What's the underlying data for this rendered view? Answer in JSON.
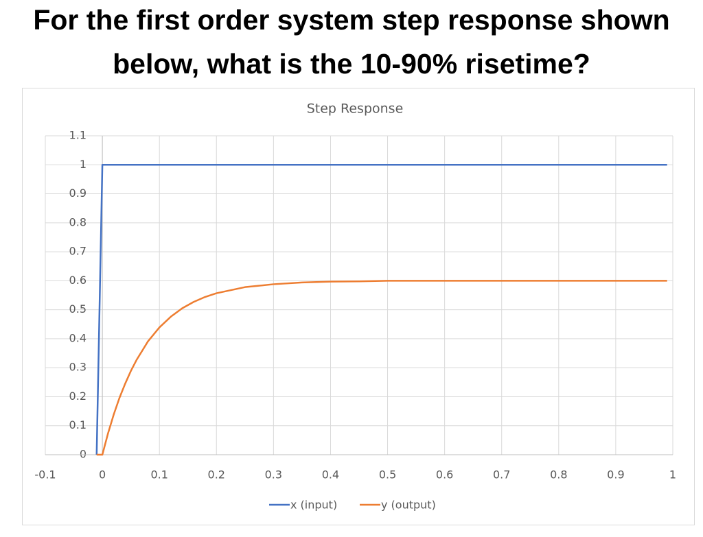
{
  "heading": [
    "For the first order system step response shown",
    "below, what is the 10-90% risetime?"
  ],
  "chart_data": {
    "type": "line",
    "title": "Step Response",
    "x": [
      -0.01,
      0,
      0.01,
      0.02,
      0.03,
      0.04,
      0.05,
      0.06,
      0.08,
      0.1,
      0.12,
      0.14,
      0.16,
      0.18,
      0.2,
      0.25,
      0.3,
      0.35,
      0.4,
      0.45,
      0.5,
      0.6,
      0.7,
      0.8,
      0.9,
      0.99
    ],
    "series": [
      {
        "name": "x (input)",
        "color": "#4472c4",
        "values": [
          0,
          1,
          1,
          1,
          1,
          1,
          1,
          1,
          1,
          1,
          1,
          1,
          1,
          1,
          1,
          1,
          1,
          1,
          1,
          1,
          1,
          1,
          1,
          1,
          1,
          1
        ]
      },
      {
        "name": "y (output)",
        "color": "#ed7d31",
        "values": [
          0,
          0,
          0.074,
          0.139,
          0.196,
          0.245,
          0.289,
          0.327,
          0.391,
          0.439,
          0.476,
          0.505,
          0.527,
          0.544,
          0.557,
          0.578,
          0.588,
          0.594,
          0.597,
          0.598,
          0.6,
          0.6,
          0.6,
          0.6,
          0.6,
          0.6
        ]
      }
    ],
    "xlim": [
      -0.1,
      1
    ],
    "xticks": [
      -0.1,
      0,
      0.1,
      0.2,
      0.3,
      0.4,
      0.5,
      0.6,
      0.7,
      0.8,
      0.9,
      1
    ],
    "ylim": [
      0,
      1.1
    ],
    "yticks": [
      0,
      0.1,
      0.2,
      0.3,
      0.4,
      0.5,
      0.6,
      0.7,
      0.8,
      0.9,
      1,
      1.1
    ],
    "grid": true,
    "legend": "bottom"
  }
}
